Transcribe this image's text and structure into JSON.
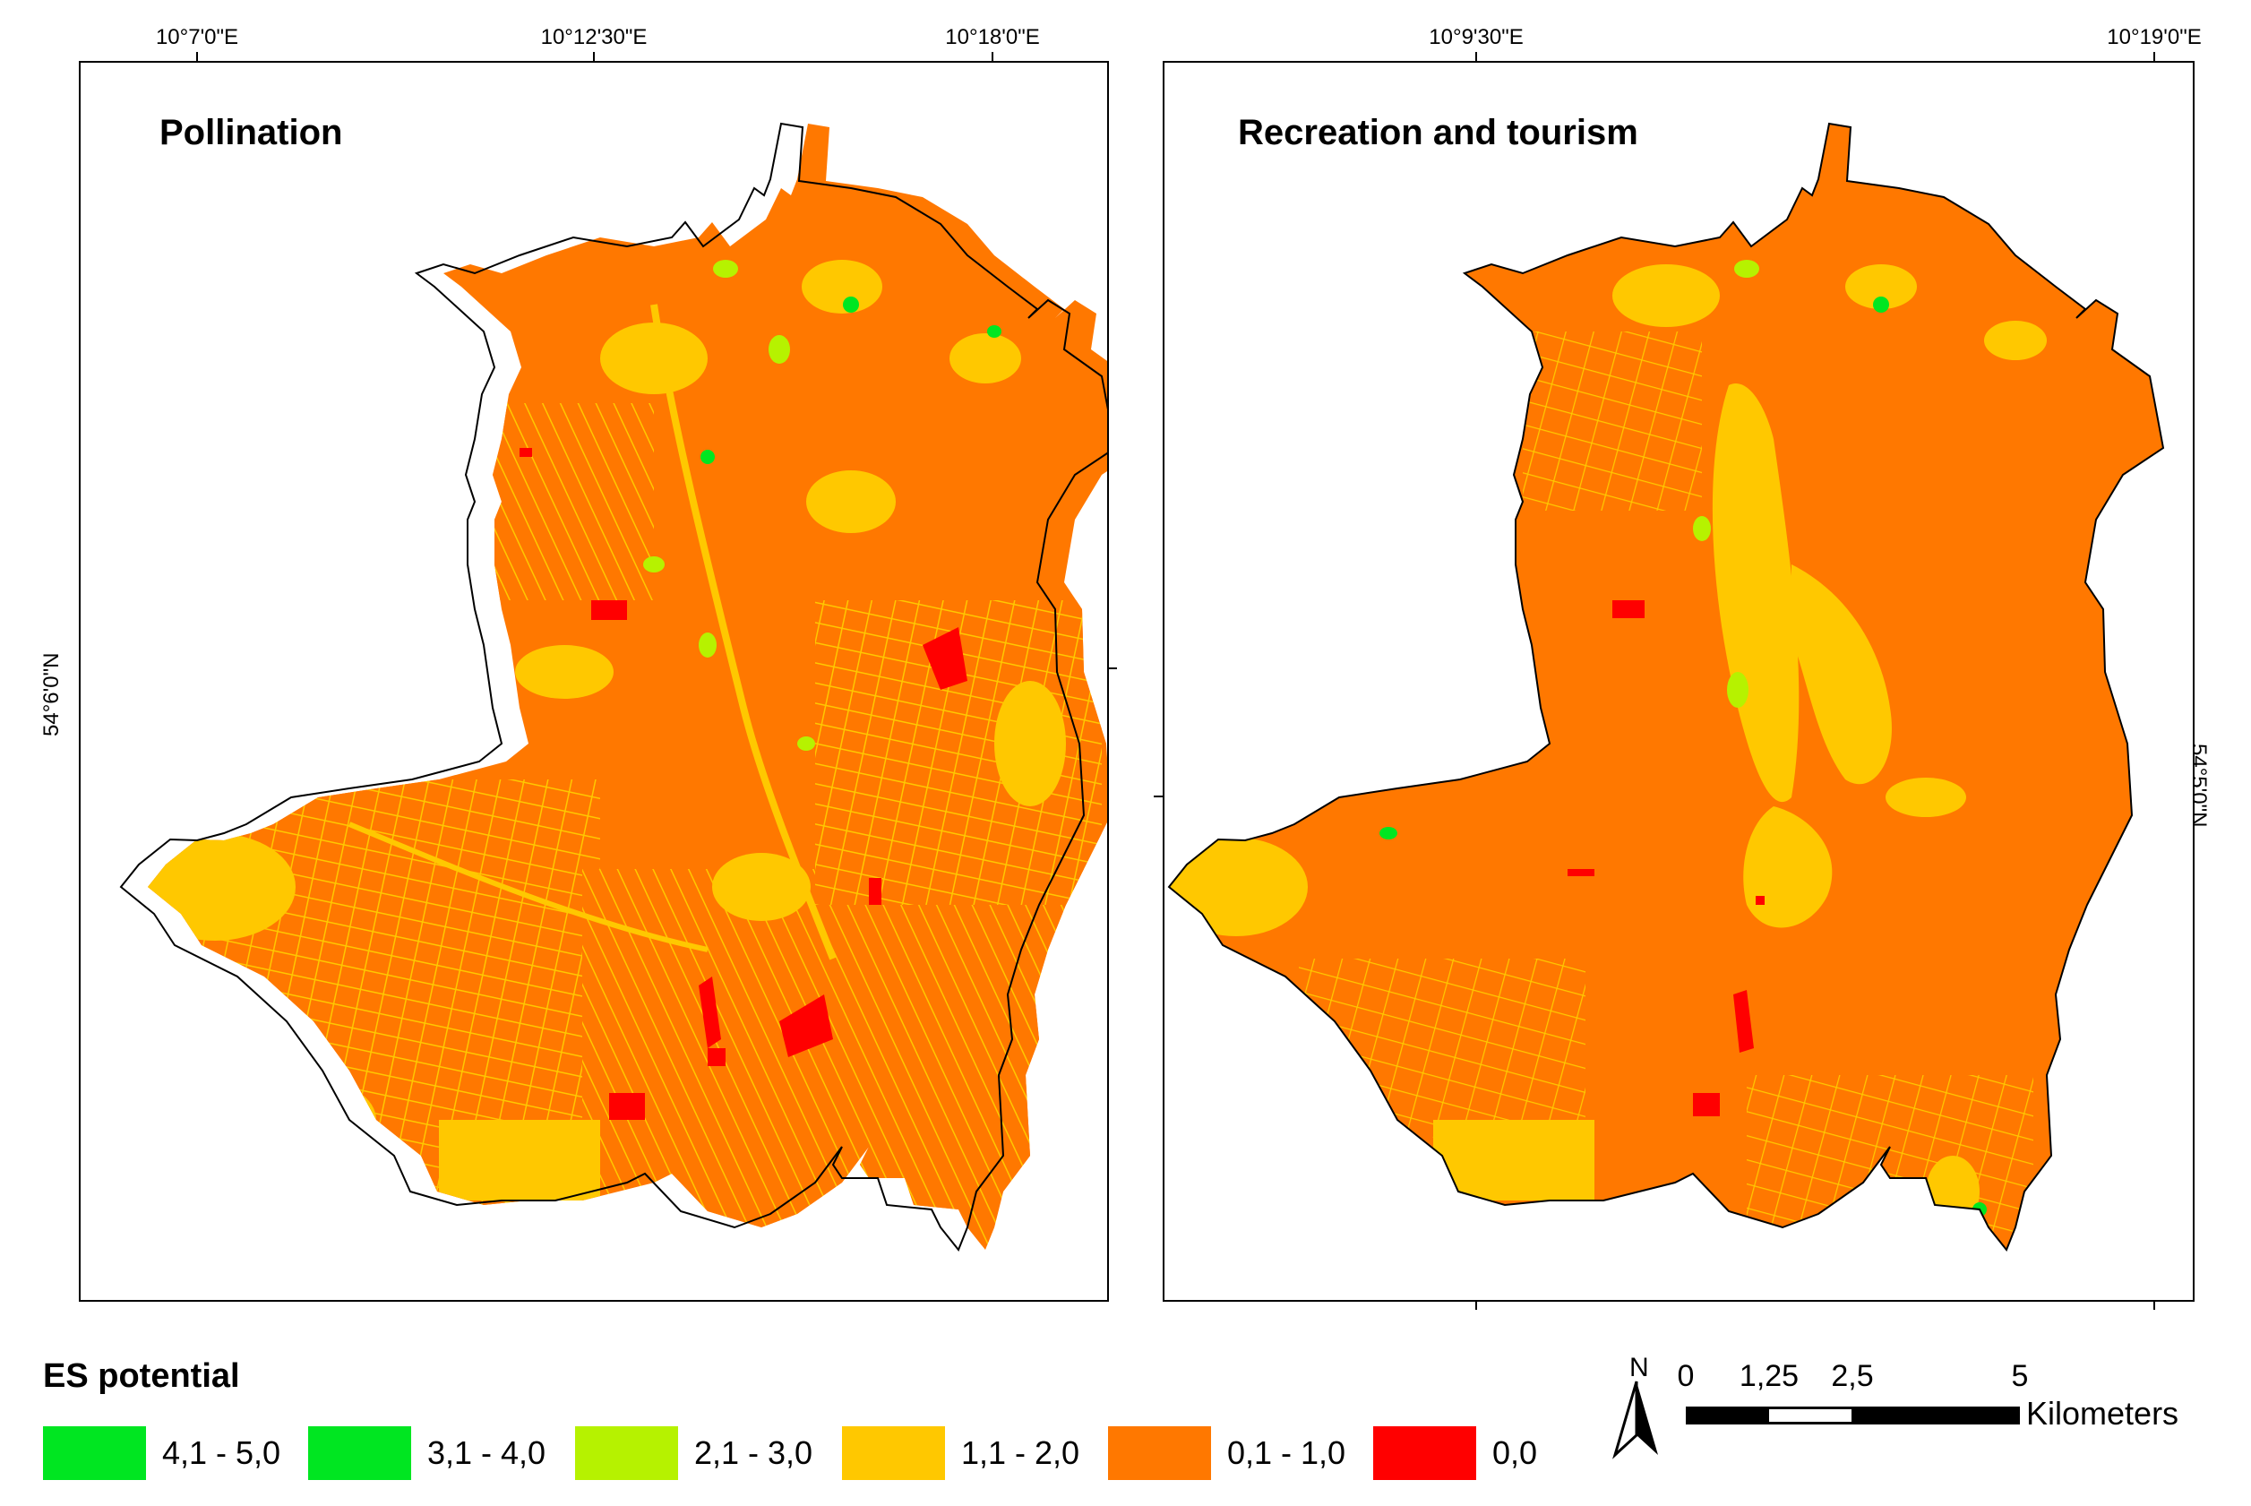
{
  "maps": {
    "left": {
      "title": "Pollination",
      "top_coords": [
        "10°7'0\"E",
        "10°12'30\"E",
        "10°18'0\"E"
      ],
      "side_coord": "54°6'0\"N"
    },
    "right": {
      "title": "Recreation and tourism",
      "top_coords": [
        "10°9'30\"E",
        "10°19'0\"E"
      ],
      "side_coord": "54°5'0\"N"
    }
  },
  "legend": {
    "title": "ES potential",
    "classes": [
      {
        "label": "4,1 - 5,0",
        "color": "#00e621"
      },
      {
        "label": "3,1 - 4,0",
        "color": "#00e621"
      },
      {
        "label": "2,1 - 3,0",
        "color": "#b6f200"
      },
      {
        "label": "1,1 - 2,0",
        "color": "#ffc800"
      },
      {
        "label": "0,1 - 1,0",
        "color": "#ff7800"
      },
      {
        "label": "0,0",
        "color": "#ff0000"
      }
    ]
  },
  "north_arrow": {
    "label": "N"
  },
  "scale_bar": {
    "ticks": [
      "0",
      "1,25",
      "2,5",
      "5"
    ],
    "unit": "Kilometers"
  }
}
